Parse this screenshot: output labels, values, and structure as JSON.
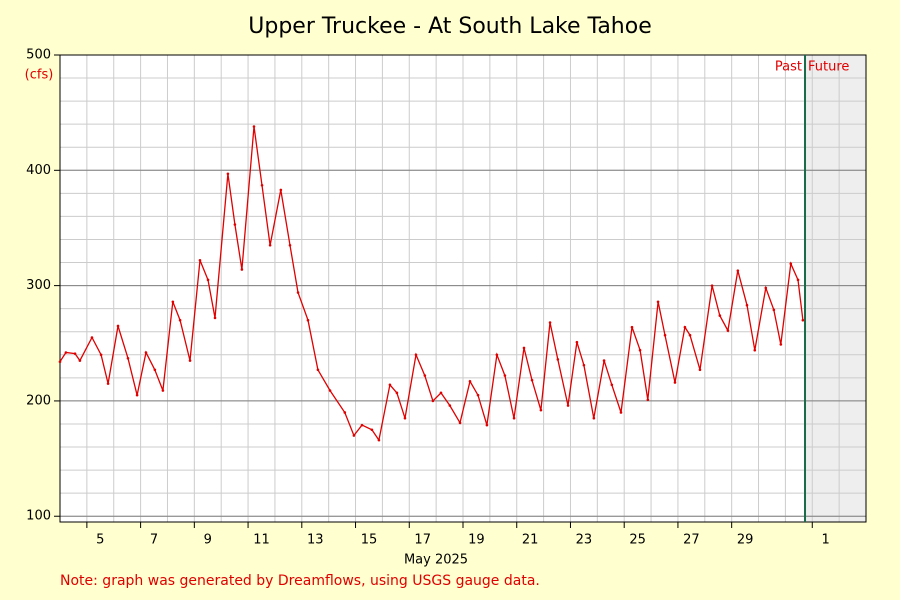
{
  "chart_data": {
    "type": "line",
    "title": "Upper Truckee - At South Lake Tahoe",
    "y_label": "(cfs)",
    "x_label": "May 2025",
    "note": "Note: graph was generated by Dreamflows, using USGS gauge data.",
    "past_label": "Past",
    "future_label": "Future",
    "now": 31.73,
    "x": [
      4.0,
      4.22,
      4.56,
      4.74,
      5.19,
      5.53,
      5.79,
      6.16,
      6.53,
      6.87,
      7.2,
      7.53,
      7.83,
      8.2,
      8.47,
      8.84,
      9.21,
      9.51,
      9.77,
      10.25,
      10.51,
      10.77,
      11.22,
      11.52,
      11.82,
      12.22,
      12.56,
      12.86,
      13.23,
      13.6,
      14.05,
      14.6,
      14.94,
      15.24,
      15.61,
      15.87,
      16.28,
      16.54,
      16.84,
      17.25,
      17.58,
      17.88,
      18.18,
      18.51,
      18.89,
      19.26,
      19.56,
      19.89,
      20.26,
      20.56,
      20.9,
      21.27,
      21.57,
      21.9,
      22.24,
      22.53,
      22.91,
      23.24,
      23.5,
      23.87,
      24.25,
      24.54,
      24.88,
      25.29,
      25.59,
      25.88,
      26.26,
      26.52,
      26.89,
      27.26,
      27.45,
      27.82,
      28.27,
      28.56,
      28.86,
      29.23,
      29.57,
      29.86,
      30.27,
      30.57,
      30.83,
      31.2,
      31.47,
      31.65
    ],
    "series": [
      {
        "name": "Flow",
        "color": "#e00000",
        "values": [
          234,
          242,
          241,
          235,
          255,
          240,
          215,
          265,
          237,
          205,
          242,
          227,
          209,
          286,
          270,
          235,
          322,
          305,
          272,
          397,
          353,
          314,
          438,
          387,
          335,
          383,
          335,
          294,
          270,
          227,
          209,
          190,
          170,
          179,
          175,
          166,
          214,
          207,
          185,
          240,
          222,
          200,
          207,
          196,
          181,
          217,
          205,
          179,
          240,
          222,
          185,
          246,
          218,
          192,
          268,
          236,
          196,
          251,
          231,
          185,
          235,
          214,
          190,
          264,
          244,
          201,
          286,
          257,
          216,
          264,
          257,
          227,
          300,
          274,
          261,
          313,
          283,
          244,
          298,
          279,
          249,
          319,
          305,
          270
        ]
      }
    ],
    "xlim": [
      4,
      34
    ],
    "ylim": [
      95,
      500
    ],
    "yticks": [
      100,
      200,
      300,
      400,
      500
    ],
    "xticks": [
      5,
      7,
      9,
      11,
      13,
      15,
      17,
      19,
      21,
      23,
      25,
      27,
      29,
      {
        "value": 32,
        "label": "1"
      }
    ],
    "grid": true
  }
}
